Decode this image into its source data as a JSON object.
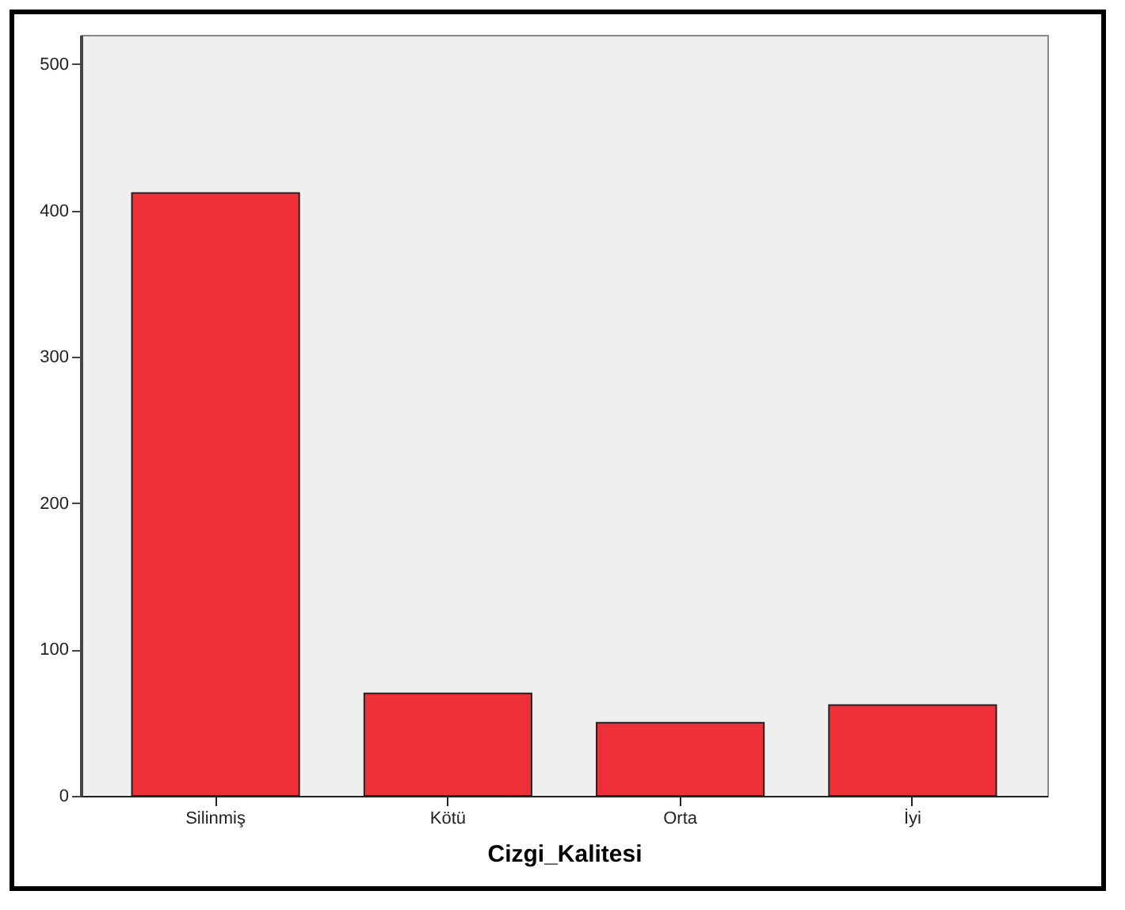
{
  "chart_data": {
    "type": "bar",
    "xlabel": "Cizgi_Kalitesi",
    "categories": [
      "Silinmiş",
      "Kötü",
      "Orta",
      "İyi"
    ],
    "values": [
      412,
      70,
      50,
      62
    ],
    "color": "#ee3039",
    "ylim": [
      0,
      520
    ],
    "yticks": [
      0,
      100,
      200,
      300,
      400,
      500
    ],
    "grid": false
  }
}
